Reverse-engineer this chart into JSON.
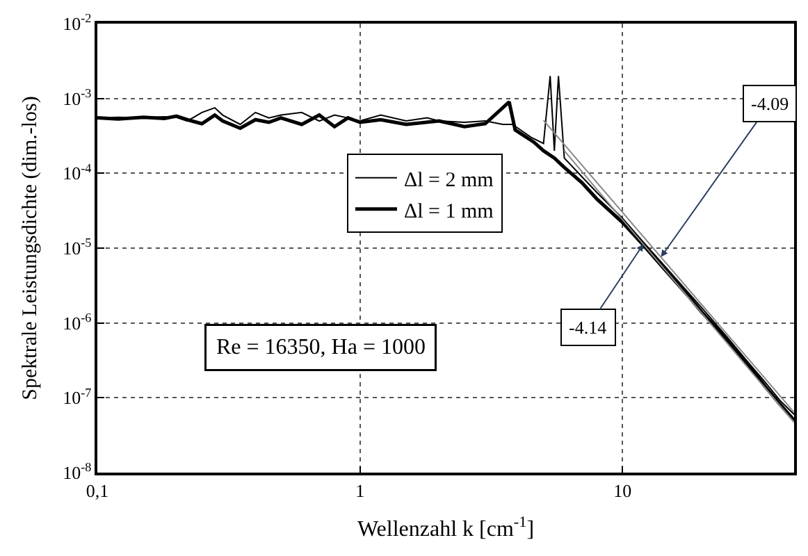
{
  "chart_data": {
    "type": "line",
    "xlabel": "Wellenzahl k [cm$^{-1}$]",
    "ylabel": "Spektrale Leistungsdichte (dim.-los)",
    "log": "xy",
    "grid": true,
    "legend": "top",
    "marker": "none",
    "line_style": "solid",
    "xlim": [
      0.1,
      45
    ],
    "xticks": [
      {
        "value": 0.1,
        "label": "0,1"
      },
      1,
      10
    ],
    "ylim": [
      1e-08,
      0.01
    ],
    "yticks": [
      {
        "value": 1e-08,
        "label": "10$^{-8}$"
      },
      {
        "value": 1e-07,
        "label": "10$^{-7}$"
      },
      {
        "value": 1e-06,
        "label": "10$^{-6}$"
      },
      {
        "value": 1e-05,
        "label": "10$^{-5}$"
      },
      {
        "value": 0.0001,
        "label": "10$^{-4}$"
      },
      {
        "value": 0.001,
        "label": "10$^{-3}$"
      },
      {
        "value": 0.01,
        "label": "10$^{-2}$"
      }
    ],
    "series": [
      {
        "name": "Δl = 2 mm",
        "color": "#000000",
        "x": [
          0.1,
          0.12,
          0.15,
          0.18,
          0.2,
          0.22,
          0.25,
          0.28,
          0.3,
          0.35,
          0.4,
          0.45,
          0.5,
          0.6,
          0.7,
          0.8,
          0.9,
          1,
          1.2,
          1.5,
          1.8,
          2,
          2.5,
          3,
          3.5,
          3.8,
          4,
          4.5,
          5,
          5.3,
          5.5,
          5.7,
          6,
          7,
          8,
          10,
          12,
          15,
          20,
          25,
          30,
          35,
          40,
          45
        ],
        "values": [
          0.00055,
          0.00056,
          0.00055,
          0.00057,
          0.00056,
          0.0005,
          0.00065,
          0.00075,
          0.0006,
          0.00045,
          0.00065,
          0.00055,
          0.0006,
          0.00065,
          0.0005,
          0.0006,
          0.00055,
          0.0005,
          0.0006,
          0.0005,
          0.00055,
          0.0005,
          0.00048,
          0.0005,
          0.00045,
          0.00045,
          0.0004,
          0.0003,
          0.00025,
          0.002,
          0.0002,
          0.002,
          0.00016,
          9e-05,
          5.5e-05,
          2.5e-05,
          1.2e-05,
          5e-06,
          1.6e-06,
          6.5e-07,
          3e-07,
          1.6e-07,
          9e-08,
          6e-08
        ]
      },
      {
        "name": "Δl = 1 mm",
        "color": "#000000",
        "x": [
          0.1,
          0.12,
          0.15,
          0.18,
          0.2,
          0.22,
          0.25,
          0.28,
          0.3,
          0.35,
          0.4,
          0.45,
          0.5,
          0.6,
          0.7,
          0.8,
          0.9,
          1,
          1.2,
          1.5,
          2,
          2.5,
          3,
          3.7,
          3.9,
          4.2,
          4.6,
          5,
          5.5,
          6,
          7,
          8,
          10,
          12,
          15,
          18,
          20,
          25,
          30,
          35,
          40,
          45
        ],
        "values": [
          0.00055,
          0.00053,
          0.00056,
          0.00054,
          0.00058,
          0.00052,
          0.00046,
          0.0006,
          0.0005,
          0.0004,
          0.00052,
          0.00048,
          0.00055,
          0.00045,
          0.0006,
          0.00042,
          0.00055,
          0.00048,
          0.00052,
          0.00045,
          0.0005,
          0.00042,
          0.00046,
          0.0009,
          0.00038,
          0.00032,
          0.00026,
          0.0002,
          0.00016,
          0.00012,
          7.5e-05,
          4.5e-05,
          2.2e-05,
          1.1e-05,
          4.5e-06,
          2.2e-06,
          1.4e-06,
          6e-07,
          2.8e-07,
          1.4e-07,
          8e-08,
          5e-08
        ]
      },
      {
        "color": "#888888",
        "x": [
          5,
          10,
          45
        ],
        "values": [
          0.00051,
          3e-05,
          6.4e-08
        ]
      },
      {
        "color": "#888888",
        "x": [
          6,
          10,
          45
        ],
        "values": [
          0.0002,
          2.4e-05,
          4.7e-08
        ]
      }
    ],
    "annotations": [
      {
        "text": "-4.09",
        "x": 14,
        "y": 7.6e-06
      },
      {
        "text": "-4.14",
        "x": 12,
        "y": 1.13e-05
      },
      "Re = 16350, Ha = 1000"
    ]
  }
}
